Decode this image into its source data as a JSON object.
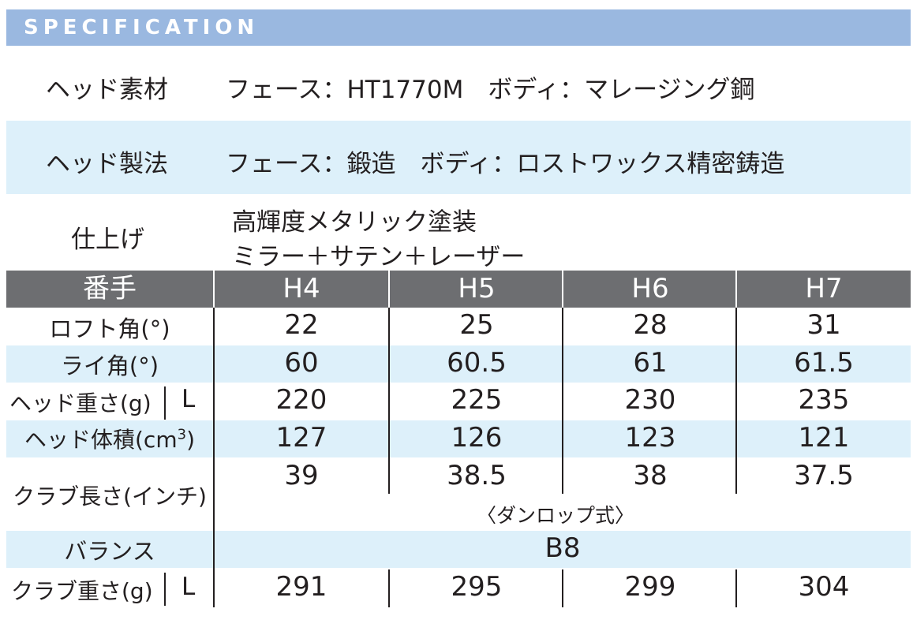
{
  "header": {
    "title": "SPECIFICATION"
  },
  "specs": [
    {
      "label": "ヘッド素材",
      "value": "フェース：HT1770M　ボディ：マレージング鋼"
    },
    {
      "label": "ヘッド製法",
      "value": "フェース：鍛造　ボディ：ロストワックス精密鋳造"
    },
    {
      "label": "仕上げ",
      "value_line1": "高輝度メタリック塗装",
      "value_line2": "ミラー＋サテン＋レーザー"
    }
  ],
  "table": {
    "columns": [
      "番手",
      "H4",
      "H5",
      "H6",
      "H7"
    ],
    "rows": {
      "loft": {
        "label": "ロフト角(°)",
        "values": [
          "22",
          "25",
          "28",
          "31"
        ]
      },
      "lie": {
        "label": "ライ角(°)",
        "values": [
          "60",
          "60.5",
          "61",
          "61.5"
        ]
      },
      "head_weight": {
        "label": "ヘッド重さ(g)",
        "suffix": "L",
        "values": [
          "220",
          "225",
          "230",
          "235"
        ]
      },
      "head_volume": {
        "label": "ヘッド体積(cm",
        "label_sup": "3",
        "label_end": ")",
        "values": [
          "127",
          "126",
          "123",
          "121"
        ]
      },
      "club_length": {
        "label": "クラブ長さ(インチ)",
        "values": [
          "39",
          "38.5",
          "38",
          "37.5"
        ],
        "note": "〈ダンロップ式〉"
      },
      "balance": {
        "label": "バランス",
        "value": "B8"
      },
      "club_weight": {
        "label": "クラブ重さ(g)",
        "suffix": "L",
        "values": [
          "291",
          "295",
          "299",
          "304"
        ]
      }
    }
  }
}
